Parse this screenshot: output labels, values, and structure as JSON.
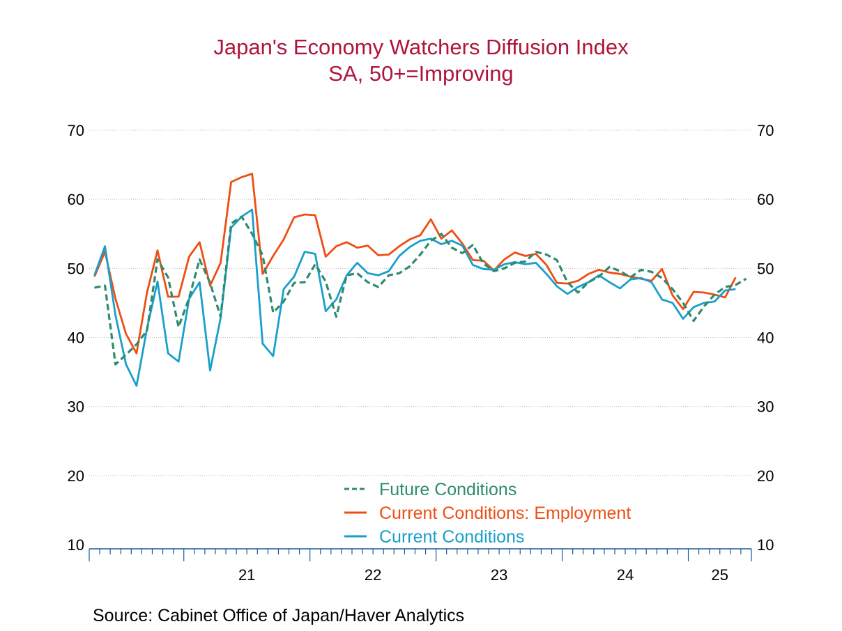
{
  "title": "Japan's Economy Watchers Diffusion Index",
  "subtitle": "SA, 50+=Improving",
  "source": "Source:  Cabinet Office of Japan/Haver Analytics",
  "colors": {
    "title": "#b0143c",
    "future": "#2e8b6e",
    "employment": "#ee4e14",
    "current": "#1a9fcb"
  },
  "chart_data": {
    "type": "line",
    "start": "2020-04",
    "frequency": "monthly",
    "ylim": [
      10,
      70
    ],
    "yticks": [
      10,
      20,
      30,
      40,
      50,
      60,
      70
    ],
    "x_tick_labels": [
      "21",
      "22",
      "23",
      "24",
      "25"
    ],
    "grid": "horizontal dotted",
    "dual_axis": true,
    "legend_position": "bottom-center",
    "series": [
      {
        "name": "Future Conditions",
        "style": "dashed",
        "values": [
          47.2,
          47.5,
          36.1,
          37.5,
          39.0,
          41.0,
          51.3,
          48.7,
          41.5,
          45.7,
          51.3,
          47.9,
          43.0,
          56.5,
          57.5,
          55.0,
          51.9,
          43.6,
          45.2,
          47.9,
          48.0,
          50.6,
          48.1,
          43.0,
          49.0,
          49.3,
          48.0,
          47.3,
          49.0,
          49.3,
          50.3,
          52.0,
          54.0,
          55.0,
          53.0,
          52.2,
          53.4,
          50.7,
          49.6,
          50.0,
          50.8,
          51.0,
          52.4,
          52.0,
          51.2,
          48.0,
          46.5,
          48.0,
          48.8,
          50.2,
          49.6,
          48.7,
          49.8,
          49.5,
          48.6,
          47.0,
          45.0,
          42.4,
          44.5,
          46.2,
          47.3,
          47.6,
          48.5
        ]
      },
      {
        "name": "Current Conditions: Employment",
        "style": "solid",
        "values": [
          48.8,
          52.4,
          45.6,
          40.5,
          37.7,
          46.5,
          52.6,
          45.9,
          45.9,
          51.7,
          53.8,
          47.5,
          50.8,
          62.5,
          63.2,
          63.7,
          49.2,
          51.8,
          54.2,
          57.4,
          57.8,
          57.7,
          51.7,
          53.2,
          53.8,
          53.0,
          53.3,
          51.9,
          52.0,
          53.2,
          54.2,
          54.8,
          57.1,
          54.3,
          55.5,
          53.6,
          51.2,
          51.1,
          49.7,
          51.3,
          52.3,
          51.8,
          52.1,
          50.5,
          47.9,
          47.8,
          48.2,
          49.2,
          49.8,
          49.4,
          49.2,
          48.8,
          48.5,
          48.2,
          49.9,
          46.1,
          44.1,
          46.6,
          46.5,
          46.2,
          45.8,
          48.7
        ]
      },
      {
        "name": "Current Conditions",
        "style": "solid",
        "values": [
          49.0,
          53.2,
          43.2,
          36.1,
          33.0,
          41.3,
          48.1,
          37.7,
          36.5,
          45.6,
          48.0,
          35.2,
          42.8,
          55.9,
          57.5,
          58.5,
          39.1,
          37.3,
          47.0,
          48.8,
          52.4,
          52.1,
          43.8,
          45.5,
          49.0,
          50.8,
          49.3,
          49.0,
          49.6,
          51.8,
          53.1,
          54.0,
          54.3,
          53.5,
          54.0,
          53.3,
          50.5,
          49.9,
          49.8,
          50.6,
          50.9,
          50.6,
          50.8,
          49.2,
          47.4,
          46.3,
          47.3,
          48.0,
          49.0,
          48.0,
          47.1,
          48.4,
          48.6,
          48.0,
          45.5,
          45.0,
          42.7,
          44.4,
          45.0,
          45.2,
          46.8,
          47.0
        ]
      }
    ]
  }
}
